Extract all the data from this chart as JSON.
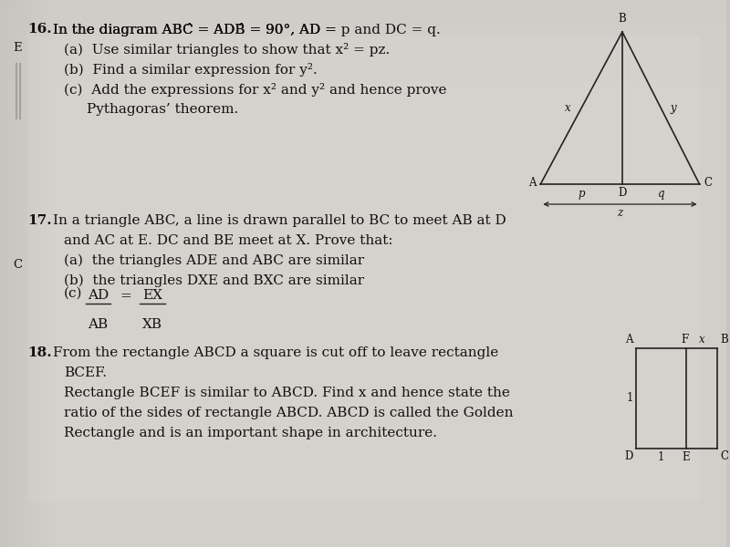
{
  "bg_color": "#c8c5c0",
  "center_color": "#d8d5d0",
  "text_color": "#111111",
  "line_color": "#222222",
  "fig_width": 8.0,
  "fig_height": 6.0,
  "q16_num": "16.",
  "q16_line1": " In the diagram ABĈ = ADB̂ = 90°, AD = p and DC = q.",
  "q16_a": "(a)  Use similar triangles to show that x² = pz.",
  "q16_b": "(b)  Find a similar expression for y².",
  "q16_c1": "(c)  Add the expressions for x² and y² and hence prove",
  "q16_c2": "       Pythagoras’ theorem.",
  "q17_num": "17.",
  "q17_line1": " In a triangle ABC, a line is drawn parallel to BC to meet AB at D",
  "q17_line2": "      and AC at E. DC and BE meet at X. Prove that:",
  "q17_a": "(a)  the triangles ADE and ABC are similar",
  "q17_b": "(b)  the triangles DXE and BXC are similar",
  "q18_num": "18.",
  "q18_line1": " From the rectangle ABCD a square is cut off to leave rectangle",
  "q18_line2": "      BCEF.",
  "q18_line3": "      Rectangle BCEF is similar to ABCD. Find x and hence state the",
  "q18_line4": "      ratio of the sides of rectangle ABCD. ABCD is called the Golden",
  "q18_line5": "      Rectangle and is an important shape in architecture.",
  "font_size": 11.0,
  "small_font": 8.5
}
